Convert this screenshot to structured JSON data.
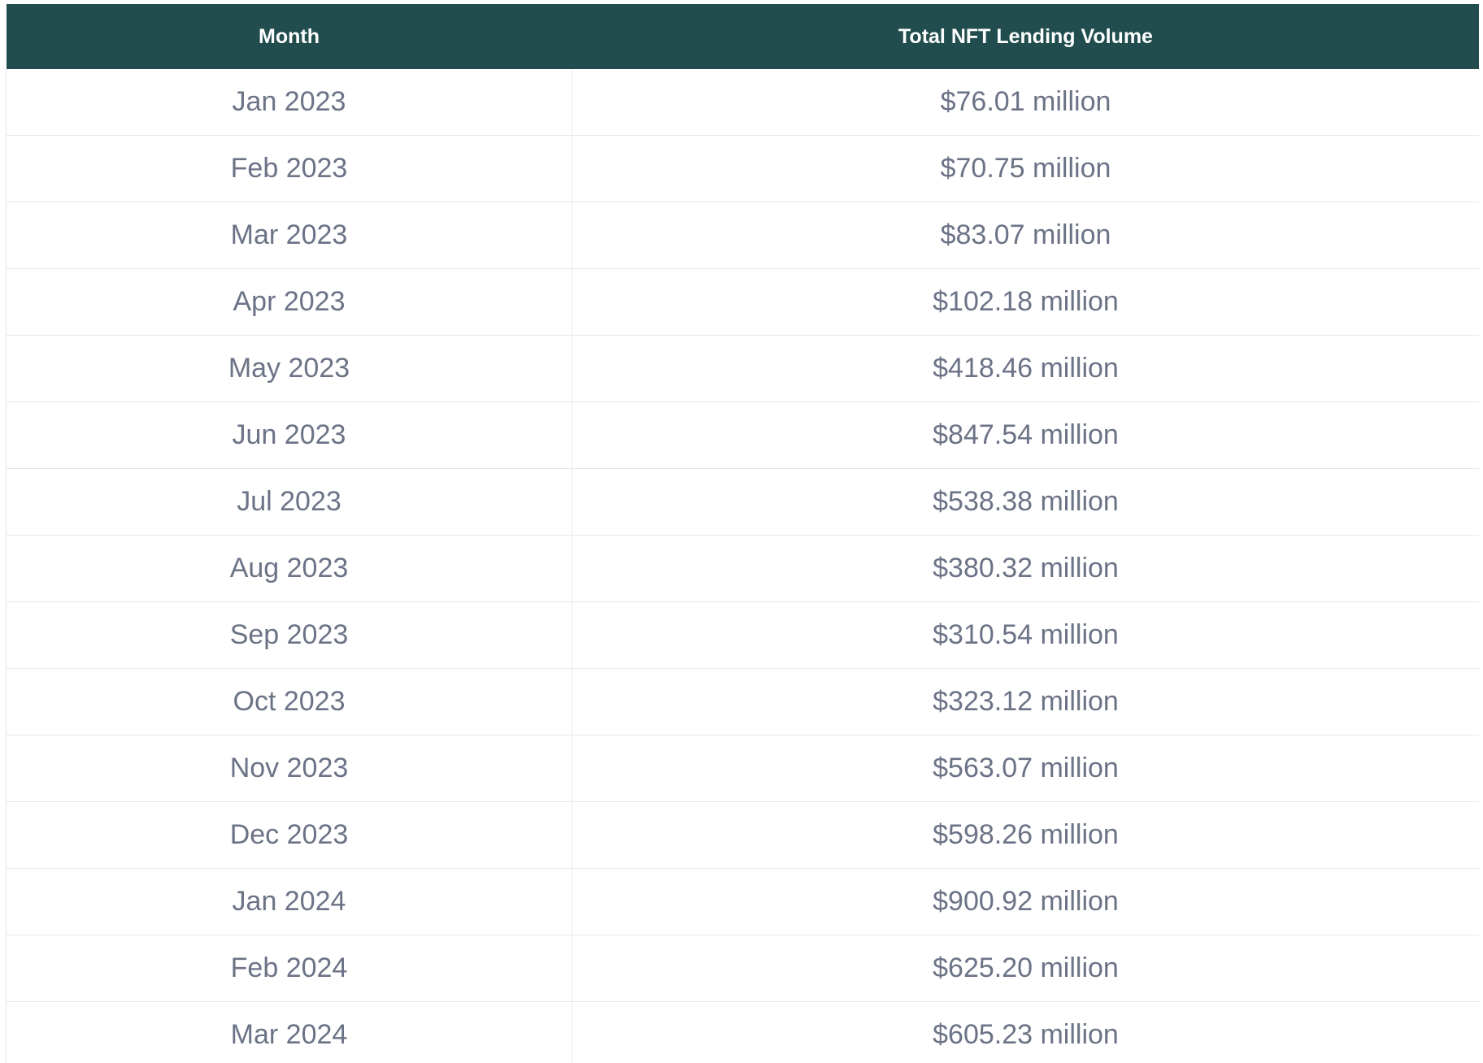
{
  "table": {
    "headers": {
      "month": "Month",
      "volume": "Total NFT Lending Volume"
    },
    "rows": [
      {
        "month": "Jan 2023",
        "volume": "$76.01 million"
      },
      {
        "month": "Feb 2023",
        "volume": "$70.75 million"
      },
      {
        "month": "Mar 2023",
        "volume": "$83.07 million"
      },
      {
        "month": "Apr 2023",
        "volume": "$102.18 million"
      },
      {
        "month": "May 2023",
        "volume": "$418.46 million"
      },
      {
        "month": "Jun 2023",
        "volume": "$847.54 million"
      },
      {
        "month": "Jul 2023",
        "volume": "$538.38 million"
      },
      {
        "month": "Aug 2023",
        "volume": "$380.32 million"
      },
      {
        "month": "Sep 2023",
        "volume": "$310.54 million"
      },
      {
        "month": "Oct 2023",
        "volume": "$323.12 million"
      },
      {
        "month": "Nov 2023",
        "volume": "$563.07 million"
      },
      {
        "month": "Dec 2023",
        "volume": "$598.26 million"
      },
      {
        "month": "Jan 2024",
        "volume": "$900.92 million"
      },
      {
        "month": "Feb 2024",
        "volume": "$625.20 million"
      },
      {
        "month": "Mar 2024",
        "volume": "$605.23 million"
      }
    ]
  },
  "colors": {
    "header_bg": "#214d4f",
    "header_text": "#ffffff",
    "cell_text": "#6b7386",
    "grid_line": "#e6e8ec"
  }
}
